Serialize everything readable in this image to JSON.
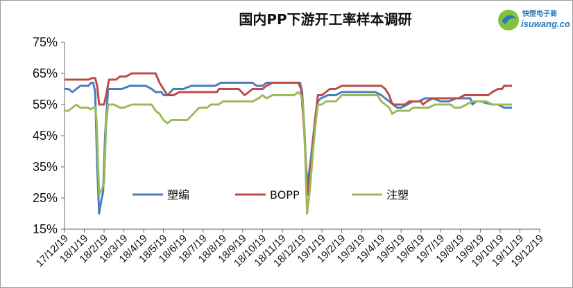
{
  "logo": {
    "text_zh": "快塑电子商",
    "text_en": "isuwang.co"
  },
  "chart_data": {
    "type": "line",
    "title": "国内PP下游开工率样本调研",
    "y_ticks": [
      "75%",
      "65%",
      "55%",
      "45%",
      "35%",
      "25%",
      "15%"
    ],
    "ylim": [
      15,
      75
    ],
    "x_ticks": [
      "17/12/19",
      "18/1/19",
      "18/2/19",
      "18/3/19",
      "18/4/19",
      "18/5/19",
      "18/6/19",
      "18/7/19",
      "18/8/19",
      "18/9/19",
      "18/10/19",
      "18/11/19",
      "18/12/19",
      "19/1/19",
      "19/2/19",
      "19/3/19",
      "19/4/19",
      "19/5/19",
      "19/6/19",
      "19/7/19",
      "19/8/19",
      "19/9/19",
      "19/10/19",
      "19/11/19",
      "19/12/19"
    ],
    "grid": false,
    "legend_position": "inside-lower-center",
    "series": [
      {
        "name": "塑编",
        "color": "#4a7ebb",
        "points": [
          [
            0,
            60
          ],
          [
            0.2,
            60
          ],
          [
            0.4,
            59
          ],
          [
            0.6,
            60
          ],
          [
            0.8,
            61
          ],
          [
            1.0,
            61
          ],
          [
            1.2,
            61
          ],
          [
            1.35,
            62
          ],
          [
            1.45,
            62
          ],
          [
            1.55,
            59
          ],
          [
            1.65,
            35
          ],
          [
            1.75,
            20
          ],
          [
            1.85,
            24
          ],
          [
            1.95,
            27
          ],
          [
            2.05,
            45
          ],
          [
            2.2,
            60
          ],
          [
            2.5,
            60
          ],
          [
            2.9,
            60
          ],
          [
            3.3,
            61
          ],
          [
            3.7,
            61
          ],
          [
            4.1,
            61
          ],
          [
            4.4,
            60
          ],
          [
            4.6,
            59
          ],
          [
            4.9,
            59
          ],
          [
            5.0,
            58
          ],
          [
            5.2,
            58
          ],
          [
            5.35,
            59
          ],
          [
            5.5,
            60
          ],
          [
            6.0,
            60
          ],
          [
            6.4,
            61
          ],
          [
            7.2,
            61
          ],
          [
            7.6,
            61
          ],
          [
            7.9,
            62
          ],
          [
            9.0,
            62
          ],
          [
            9.5,
            62
          ],
          [
            9.7,
            61
          ],
          [
            10.0,
            61
          ],
          [
            10.2,
            62
          ],
          [
            11.0,
            62
          ],
          [
            11.6,
            62
          ],
          [
            11.9,
            62
          ],
          [
            12.0,
            59
          ],
          [
            12.1,
            49
          ],
          [
            12.25,
            28
          ],
          [
            12.45,
            38
          ],
          [
            12.65,
            50
          ],
          [
            12.8,
            56
          ],
          [
            12.95,
            57
          ],
          [
            13.3,
            58
          ],
          [
            13.7,
            58
          ],
          [
            14.0,
            59
          ],
          [
            15.7,
            59
          ],
          [
            16.0,
            58
          ],
          [
            16.2,
            57
          ],
          [
            16.4,
            56
          ],
          [
            16.6,
            55
          ],
          [
            16.8,
            54
          ],
          [
            17.0,
            54
          ],
          [
            17.3,
            55
          ],
          [
            17.6,
            56
          ],
          [
            17.9,
            56
          ],
          [
            18.2,
            57
          ],
          [
            18.6,
            57
          ],
          [
            19.0,
            56
          ],
          [
            19.4,
            56
          ],
          [
            19.8,
            57
          ],
          [
            20.2,
            57
          ],
          [
            20.5,
            57
          ],
          [
            20.6,
            55
          ],
          [
            20.8,
            56
          ],
          [
            21.0,
            56
          ],
          [
            21.6,
            55
          ],
          [
            21.9,
            55
          ],
          [
            22.2,
            54
          ],
          [
            22.6,
            54
          ]
        ]
      },
      {
        "name": "BOPP",
        "color": "#be4b48",
        "points": [
          [
            0,
            63
          ],
          [
            1.2,
            63
          ],
          [
            1.4,
            63.5
          ],
          [
            1.55,
            63.5
          ],
          [
            1.65,
            61
          ],
          [
            1.75,
            55
          ],
          [
            2.0,
            55
          ],
          [
            2.1,
            58
          ],
          [
            2.25,
            63
          ],
          [
            2.6,
            63
          ],
          [
            2.8,
            64
          ],
          [
            3.1,
            64
          ],
          [
            3.4,
            65
          ],
          [
            4.1,
            65
          ],
          [
            4.6,
            65
          ],
          [
            4.8,
            62
          ],
          [
            5.0,
            60
          ],
          [
            5.2,
            58
          ],
          [
            5.5,
            58
          ],
          [
            5.8,
            59
          ],
          [
            6.5,
            59
          ],
          [
            7.7,
            59
          ],
          [
            7.8,
            60
          ],
          [
            8.8,
            60
          ],
          [
            9.1,
            58
          ],
          [
            9.3,
            59
          ],
          [
            9.5,
            60
          ],
          [
            10.0,
            60
          ],
          [
            10.2,
            61
          ],
          [
            10.5,
            62
          ],
          [
            11.6,
            62
          ],
          [
            11.8,
            62
          ],
          [
            11.95,
            60
          ],
          [
            12.1,
            47
          ],
          [
            12.2,
            35
          ],
          [
            12.3,
            26
          ],
          [
            12.45,
            35
          ],
          [
            12.65,
            50
          ],
          [
            12.8,
            58
          ],
          [
            13.0,
            58
          ],
          [
            13.2,
            59
          ],
          [
            13.4,
            60
          ],
          [
            13.7,
            60
          ],
          [
            14.0,
            61
          ],
          [
            16.0,
            61
          ],
          [
            16.2,
            60
          ],
          [
            16.4,
            58
          ],
          [
            16.5,
            56
          ],
          [
            16.6,
            55
          ],
          [
            17.2,
            55
          ],
          [
            17.4,
            56
          ],
          [
            18.0,
            56
          ],
          [
            18.1,
            55
          ],
          [
            18.3,
            56
          ],
          [
            18.6,
            57
          ],
          [
            19.9,
            57
          ],
          [
            20.2,
            58
          ],
          [
            21.0,
            58
          ],
          [
            21.4,
            58
          ],
          [
            21.6,
            59
          ],
          [
            21.9,
            60
          ],
          [
            22.1,
            60
          ],
          [
            22.2,
            61
          ],
          [
            22.6,
            61
          ]
        ]
      },
      {
        "name": "注塑",
        "color": "#9bbb59",
        "points": [
          [
            0,
            53
          ],
          [
            0.2,
            53
          ],
          [
            0.4,
            54
          ],
          [
            0.6,
            55
          ],
          [
            0.8,
            54
          ],
          [
            1.2,
            54
          ],
          [
            1.3,
            53.5
          ],
          [
            1.45,
            54
          ],
          [
            1.55,
            54
          ],
          [
            1.62,
            50
          ],
          [
            1.7,
            35
          ],
          [
            1.75,
            26
          ],
          [
            1.9,
            28
          ],
          [
            2.0,
            30
          ],
          [
            2.1,
            48
          ],
          [
            2.2,
            55
          ],
          [
            2.5,
            55
          ],
          [
            2.8,
            54
          ],
          [
            3.0,
            54
          ],
          [
            3.4,
            55
          ],
          [
            4.4,
            55
          ],
          [
            4.6,
            53
          ],
          [
            4.8,
            52
          ],
          [
            5.0,
            50
          ],
          [
            5.2,
            49
          ],
          [
            5.4,
            50
          ],
          [
            6.2,
            50
          ],
          [
            6.5,
            52
          ],
          [
            6.8,
            54
          ],
          [
            7.2,
            54
          ],
          [
            7.4,
            55
          ],
          [
            7.8,
            55
          ],
          [
            8.0,
            56
          ],
          [
            9.5,
            56
          ],
          [
            9.8,
            57
          ],
          [
            10.0,
            58
          ],
          [
            10.2,
            57
          ],
          [
            10.5,
            58
          ],
          [
            11.0,
            58
          ],
          [
            11.6,
            58
          ],
          [
            11.8,
            59
          ],
          [
            11.95,
            58
          ],
          [
            12.05,
            55
          ],
          [
            12.15,
            40
          ],
          [
            12.25,
            20
          ],
          [
            12.4,
            28
          ],
          [
            12.55,
            40
          ],
          [
            12.7,
            50
          ],
          [
            12.8,
            55
          ],
          [
            13.0,
            55
          ],
          [
            13.2,
            56
          ],
          [
            13.7,
            56
          ],
          [
            14.0,
            58
          ],
          [
            15.8,
            58
          ],
          [
            16.0,
            56
          ],
          [
            16.2,
            55
          ],
          [
            16.4,
            54
          ],
          [
            16.55,
            52
          ],
          [
            16.8,
            53
          ],
          [
            17.4,
            53
          ],
          [
            17.6,
            54
          ],
          [
            18.4,
            54
          ],
          [
            18.7,
            55
          ],
          [
            19.5,
            55
          ],
          [
            19.7,
            54
          ],
          [
            20.0,
            54
          ],
          [
            20.3,
            55
          ],
          [
            20.6,
            56
          ],
          [
            21.0,
            56
          ],
          [
            21.3,
            56
          ],
          [
            21.6,
            55
          ],
          [
            22.6,
            55
          ]
        ]
      }
    ]
  }
}
